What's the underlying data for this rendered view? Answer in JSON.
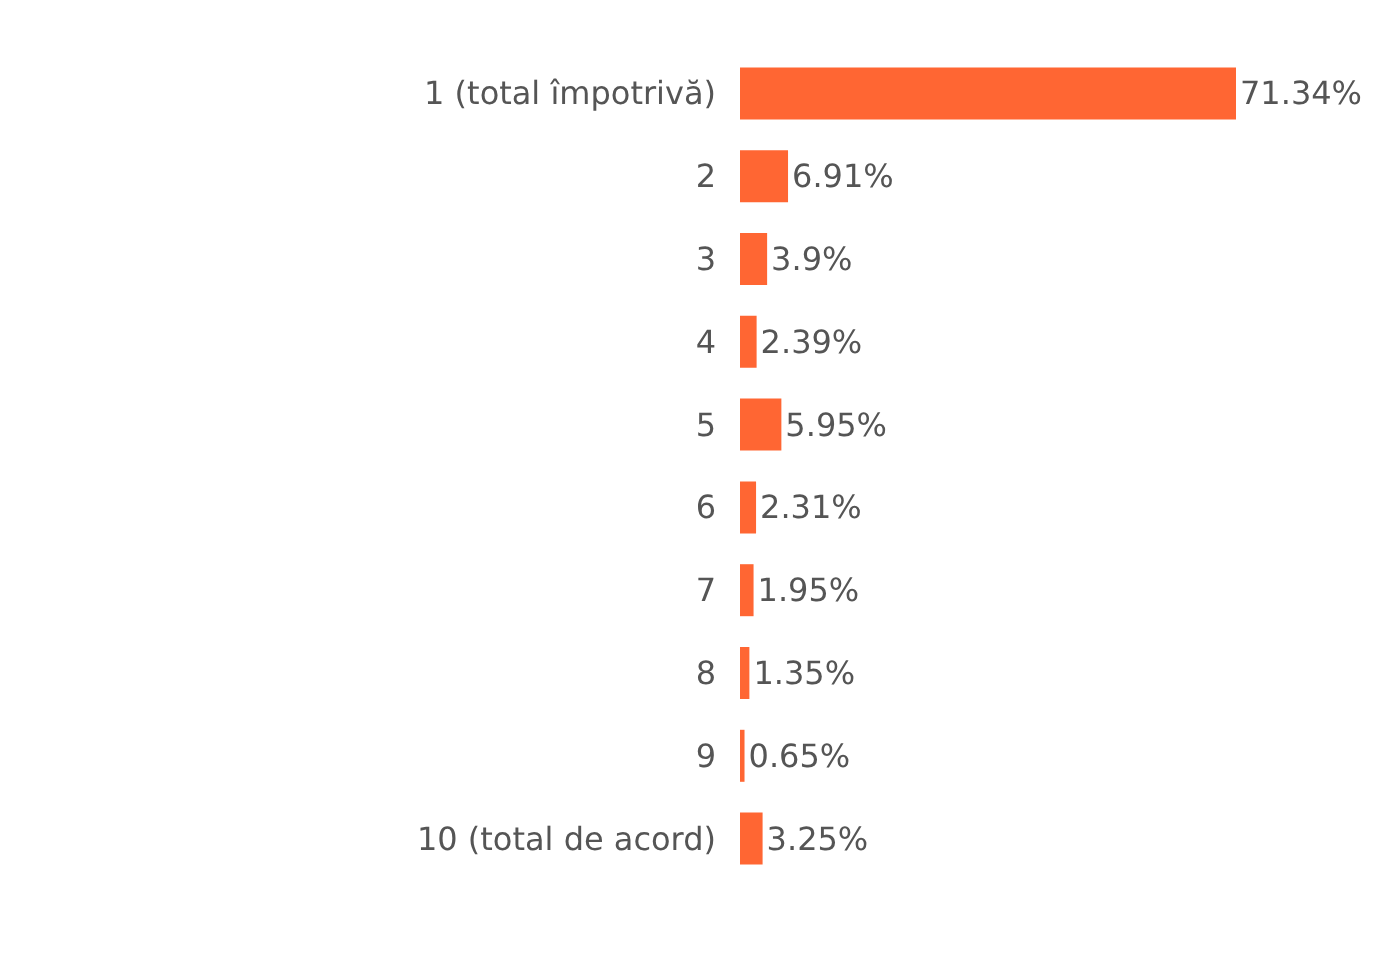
{
  "chart_data": {
    "type": "bar",
    "orientation": "horizontal",
    "categories": [
      "1 (total împotrivă)",
      "2",
      "3",
      "4",
      "5",
      "6",
      "7",
      "8",
      "9",
      "10 (total de acord)"
    ],
    "values": [
      71.34,
      6.91,
      3.9,
      2.39,
      5.95,
      2.31,
      1.95,
      1.35,
      0.65,
      3.25
    ],
    "value_labels": [
      "71.34%",
      "6.91%",
      "3.9%",
      "2.39%",
      "5.95%",
      "2.31%",
      "1.95%",
      "1.35%",
      "0.65%",
      "3.25%"
    ],
    "color": "#ff6633"
  }
}
